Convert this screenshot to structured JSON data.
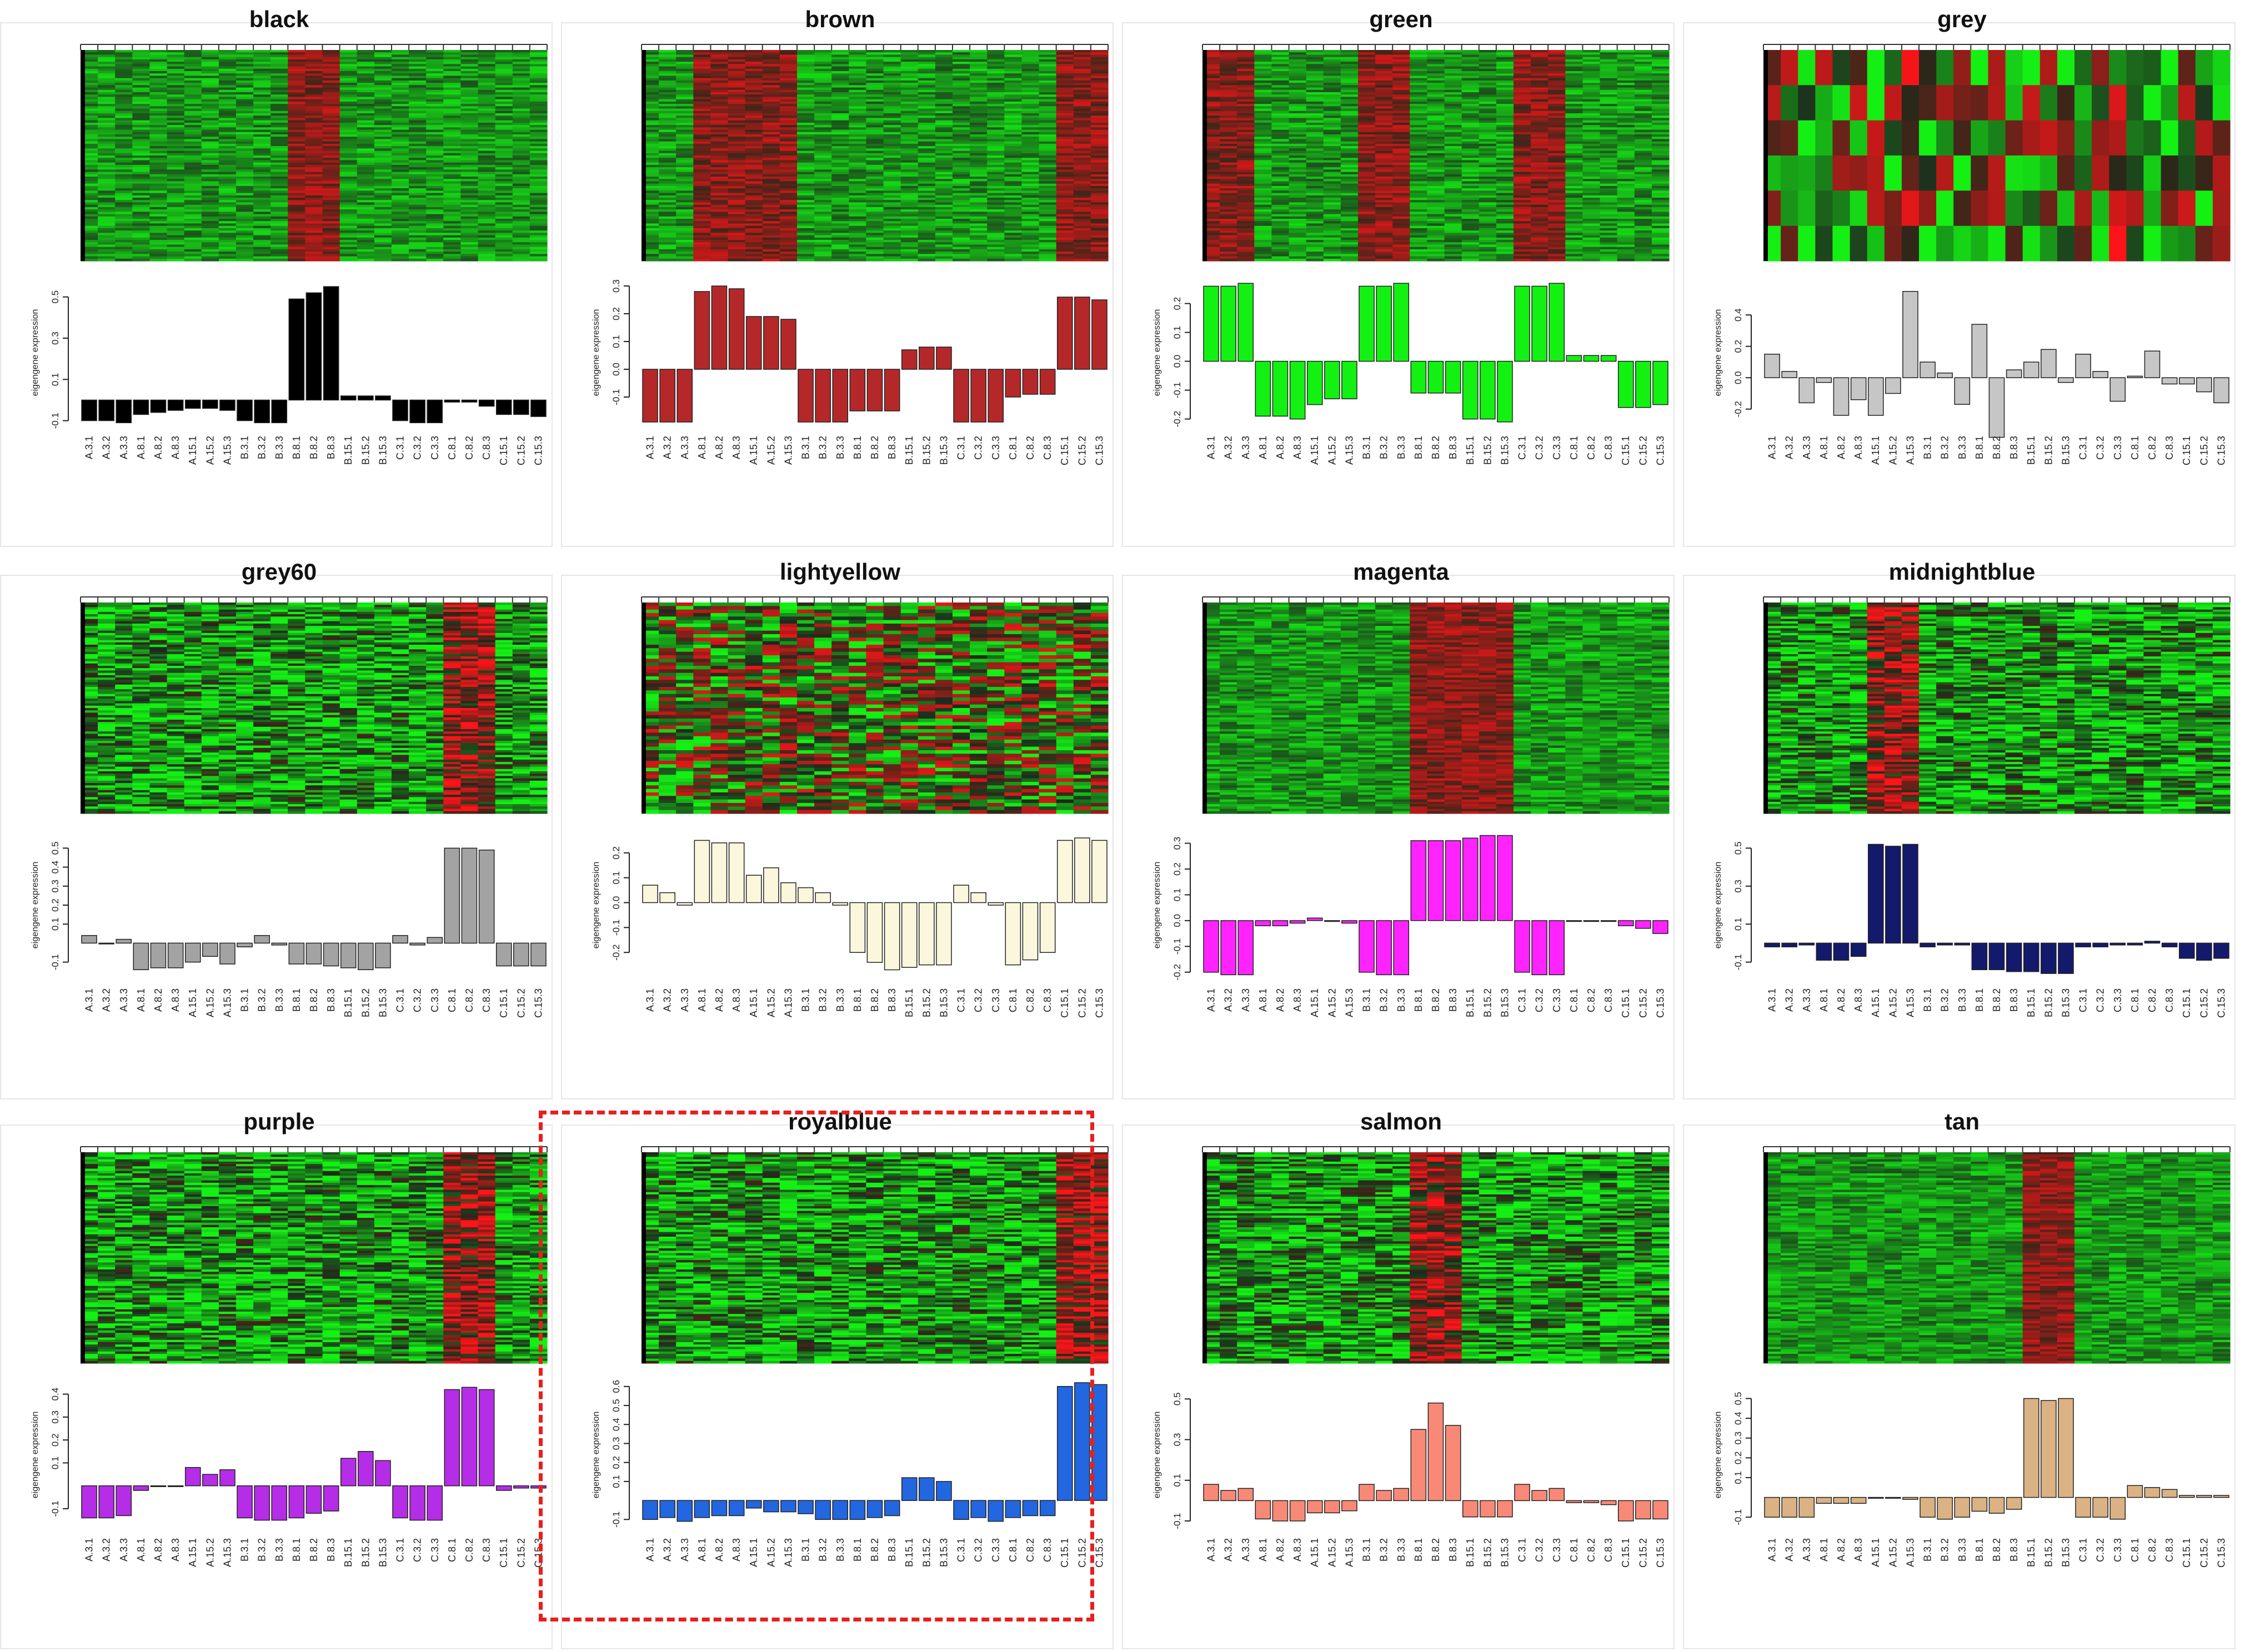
{
  "chart_data": [
    {
      "type": "bar",
      "title": "black",
      "ylabel": "eigengene expression",
      "bar_color": "#000000",
      "ylim": [
        -0.12,
        0.58
      ],
      "yticks": [
        -0.1,
        0.1,
        0.3,
        0.5
      ],
      "heatmap_style": "smooth",
      "highlight_columns": [
        12,
        13,
        14
      ],
      "heatmap_bias": 0.55,
      "categories": [
        "A.3.1",
        "A.3.2",
        "A.3.3",
        "A.8.1",
        "A.8.2",
        "A.8.3",
        "A.15.1",
        "A.15.2",
        "A.15.3",
        "B.3.1",
        "B.3.2",
        "B.3.3",
        "B.8.1",
        "B.8.2",
        "B.8.3",
        "B.15.1",
        "B.15.2",
        "B.15.3",
        "C.3.1",
        "C.3.2",
        "C.3.3",
        "C.8.1",
        "C.8.2",
        "C.8.3",
        "C.15.1",
        "C.15.2",
        "C.15.3"
      ],
      "values": [
        -0.1,
        -0.1,
        -0.11,
        -0.07,
        -0.06,
        -0.05,
        -0.04,
        -0.04,
        -0.05,
        -0.1,
        -0.11,
        -0.11,
        0.49,
        0.52,
        0.55,
        0.02,
        0.02,
        0.02,
        -0.1,
        -0.11,
        -0.11,
        -0.01,
        -0.01,
        -0.03,
        -0.07,
        -0.07,
        -0.08
      ]
    },
    {
      "type": "bar",
      "title": "brown",
      "ylabel": "eigengene expression",
      "bar_color": "#b5282a",
      "ylim": [
        -0.2,
        0.32
      ],
      "yticks": [
        -0.1,
        0.0,
        0.1,
        0.2,
        0.3
      ],
      "heatmap_style": "smooth",
      "highlight_columns": [
        3,
        4,
        5,
        6,
        7,
        8,
        24,
        25,
        26
      ],
      "heatmap_bias": 0.22,
      "categories": [
        "A.3.1",
        "A.3.2",
        "A.3.3",
        "A.8.1",
        "A.8.2",
        "A.8.3",
        "A.15.1",
        "A.15.2",
        "A.15.3",
        "B.3.1",
        "B.3.2",
        "B.3.3",
        "B.8.1",
        "B.8.2",
        "B.8.3",
        "B.15.1",
        "B.15.2",
        "B.15.3",
        "C.3.1",
        "C.3.2",
        "C.3.3",
        "C.8.1",
        "C.8.2",
        "C.8.3",
        "C.15.1",
        "C.15.2",
        "C.15.3"
      ],
      "values": [
        -0.19,
        -0.19,
        -0.19,
        0.28,
        0.3,
        0.29,
        0.19,
        0.19,
        0.18,
        -0.19,
        -0.19,
        -0.19,
        -0.15,
        -0.15,
        -0.15,
        0.07,
        0.08,
        0.08,
        -0.19,
        -0.19,
        -0.19,
        -0.1,
        -0.09,
        -0.09,
        0.26,
        0.26,
        0.25
      ]
    },
    {
      "type": "bar",
      "title": "green",
      "ylabel": "eigengene expression",
      "bar_color": "#13f113",
      "ylim": [
        -0.22,
        0.28
      ],
      "yticks": [
        -0.2,
        -0.1,
        0.0,
        0.1,
        0.2
      ],
      "heatmap_style": "smooth",
      "highlight_columns": [
        0,
        1,
        2,
        9,
        10,
        11,
        18,
        19,
        20
      ],
      "heatmap_bias": 0.35,
      "categories": [
        "A.3.1",
        "A.3.2",
        "A.3.3",
        "A.8.1",
        "A.8.2",
        "A.8.3",
        "A.15.1",
        "A.15.2",
        "A.15.3",
        "B.3.1",
        "B.3.2",
        "B.3.3",
        "B.8.1",
        "B.8.2",
        "B.8.3",
        "B.15.1",
        "B.15.2",
        "B.15.3",
        "C.3.1",
        "C.3.2",
        "C.3.3",
        "C.8.1",
        "C.8.2",
        "C.8.3",
        "C.15.1",
        "C.15.2",
        "C.15.3"
      ],
      "values": [
        0.26,
        0.26,
        0.27,
        -0.19,
        -0.19,
        -0.2,
        -0.15,
        -0.13,
        -0.13,
        0.26,
        0.26,
        0.27,
        -0.11,
        -0.11,
        -0.11,
        -0.2,
        -0.2,
        -0.21,
        0.26,
        0.26,
        0.27,
        0.02,
        0.02,
        0.02,
        -0.16,
        -0.16,
        -0.15
      ]
    },
    {
      "type": "bar",
      "title": "grey",
      "ylabel": "eigengene expression",
      "bar_color": "#c6c6c6",
      "ylim": [
        -0.3,
        0.62
      ],
      "yticks": [
        -0.2,
        0.0,
        0.2,
        0.4
      ],
      "heatmap_style": "blocky",
      "heatmap_rows": 6,
      "highlight_columns": [
        8,
        13,
        20
      ],
      "heatmap_bias": 0.1,
      "categories": [
        "A.3.1",
        "A.3.2",
        "A.3.3",
        "A.8.1",
        "A.8.2",
        "A.8.3",
        "A.15.1",
        "A.15.2",
        "A.15.3",
        "B.3.1",
        "B.3.2",
        "B.3.3",
        "B.8.1",
        "B.8.2",
        "B.8.3",
        "B.15.1",
        "B.15.2",
        "B.15.3",
        "C.3.1",
        "C.3.2",
        "C.3.3",
        "C.8.1",
        "C.8.2",
        "C.8.3",
        "C.15.1",
        "C.15.2",
        "C.15.3"
      ],
      "values": [
        0.15,
        0.04,
        -0.16,
        -0.03,
        -0.24,
        -0.14,
        -0.24,
        -0.1,
        0.55,
        0.1,
        0.03,
        -0.17,
        0.34,
        -0.38,
        0.05,
        0.1,
        0.18,
        -0.03,
        0.15,
        0.04,
        -0.15,
        0.01,
        0.17,
        -0.04,
        -0.04,
        -0.09,
        -0.16
      ]
    },
    {
      "type": "bar",
      "title": "grey60",
      "ylabel": "eigengene expression",
      "bar_color": "#a3a3a3",
      "ylim": [
        -0.18,
        0.58
      ],
      "yticks": [
        -0.1,
        0.1,
        0.2,
        0.3,
        0.4,
        0.5
      ],
      "heatmap_style": "fine",
      "highlight_columns": [
        21,
        22,
        23
      ],
      "heatmap_bias": 0.15,
      "categories": [
        "A.3.1",
        "A.3.2",
        "A.3.3",
        "A.8.1",
        "A.8.2",
        "A.8.3",
        "A.15.1",
        "A.15.2",
        "A.15.3",
        "B.3.1",
        "B.3.2",
        "B.3.3",
        "B.8.1",
        "B.8.2",
        "B.8.3",
        "B.15.1",
        "B.15.2",
        "B.15.3",
        "C.3.1",
        "C.3.2",
        "C.3.3",
        "C.8.1",
        "C.8.2",
        "C.8.3",
        "C.15.1",
        "C.15.2",
        "C.15.3"
      ],
      "values": [
        0.04,
        0.0,
        0.02,
        -0.14,
        -0.13,
        -0.13,
        -0.1,
        -0.07,
        -0.11,
        -0.02,
        0.04,
        -0.01,
        -0.11,
        -0.11,
        -0.12,
        -0.13,
        -0.14,
        -0.13,
        0.04,
        -0.01,
        0.03,
        0.5,
        0.5,
        0.49,
        -0.12,
        -0.12,
        -0.12
      ]
    },
    {
      "type": "bar",
      "title": "lightyellow",
      "ylabel": "eigengene expression",
      "bar_color": "#fbf7dc",
      "ylim": [
        -0.3,
        0.28
      ],
      "yticks": [
        -0.2,
        -0.1,
        0.0,
        0.1,
        0.2
      ],
      "heatmap_style": "noisy",
      "highlight_columns": [],
      "heatmap_bias": 0.05,
      "categories": [
        "A.3.1",
        "A.3.2",
        "A.3.3",
        "A.8.1",
        "A.8.2",
        "A.8.3",
        "A.15.1",
        "A.15.2",
        "A.15.3",
        "B.3.1",
        "B.3.2",
        "B.3.3",
        "B.8.1",
        "B.8.2",
        "B.8.3",
        "B.15.1",
        "B.15.2",
        "B.15.3",
        "C.3.1",
        "C.3.2",
        "C.3.3",
        "C.8.1",
        "C.8.2",
        "C.8.3",
        "C.15.1",
        "C.15.2",
        "C.15.3"
      ],
      "values": [
        0.07,
        0.04,
        -0.01,
        0.25,
        0.24,
        0.24,
        0.11,
        0.14,
        0.08,
        0.06,
        0.04,
        -0.01,
        -0.2,
        -0.24,
        -0.27,
        -0.26,
        -0.25,
        -0.25,
        0.07,
        0.04,
        -0.01,
        -0.25,
        -0.23,
        -0.2,
        0.25,
        0.26,
        0.25
      ]
    },
    {
      "type": "bar",
      "title": "magenta",
      "ylabel": "eigengene expression",
      "bar_color": "#ff24ff",
      "ylim": [
        -0.22,
        0.34
      ],
      "yticks": [
        -0.2,
        -0.1,
        0.0,
        0.1,
        0.2,
        0.3
      ],
      "heatmap_style": "smooth",
      "highlight_columns": [
        12,
        13,
        14,
        15,
        16,
        17
      ],
      "heatmap_bias": 0.3,
      "categories": [
        "A.3.1",
        "A.3.2",
        "A.3.3",
        "A.8.1",
        "A.8.2",
        "A.8.3",
        "A.15.1",
        "A.15.2",
        "A.15.3",
        "B.3.1",
        "B.3.2",
        "B.3.3",
        "B.8.1",
        "B.8.2",
        "B.8.3",
        "B.15.1",
        "B.15.2",
        "B.15.3",
        "C.3.1",
        "C.3.2",
        "C.3.3",
        "C.8.1",
        "C.8.2",
        "C.8.3",
        "C.15.1",
        "C.15.2",
        "C.15.3"
      ],
      "values": [
        -0.2,
        -0.21,
        -0.21,
        -0.02,
        -0.02,
        -0.01,
        0.01,
        0.0,
        -0.01,
        -0.2,
        -0.21,
        -0.21,
        0.31,
        0.31,
        0.31,
        0.32,
        0.33,
        0.33,
        -0.2,
        -0.21,
        -0.21,
        0.0,
        0.0,
        0.0,
        -0.02,
        -0.03,
        -0.05
      ]
    },
    {
      "type": "bar",
      "title": "midnightblue",
      "ylabel": "eigengene expression",
      "bar_color": "#13196b",
      "ylim": [
        -0.18,
        0.58
      ],
      "yticks": [
        -0.1,
        0.1,
        0.3,
        0.5
      ],
      "heatmap_style": "fine",
      "highlight_columns": [
        6,
        7,
        8
      ],
      "heatmap_bias": 0.15,
      "categories": [
        "A.3.1",
        "A.3.2",
        "A.3.3",
        "A.8.1",
        "A.8.2",
        "A.8.3",
        "A.15.1",
        "A.15.2",
        "A.15.3",
        "B.3.1",
        "B.3.2",
        "B.3.3",
        "B.8.1",
        "B.8.2",
        "B.8.3",
        "B.15.1",
        "B.15.2",
        "B.15.3",
        "C.3.1",
        "C.3.2",
        "C.3.3",
        "C.8.1",
        "C.8.2",
        "C.8.3",
        "C.15.1",
        "C.15.2",
        "C.15.3"
      ],
      "values": [
        -0.02,
        -0.02,
        -0.01,
        -0.09,
        -0.09,
        -0.07,
        0.52,
        0.51,
        0.52,
        -0.02,
        -0.01,
        -0.01,
        -0.14,
        -0.14,
        -0.15,
        -0.15,
        -0.16,
        -0.16,
        -0.02,
        -0.02,
        -0.01,
        -0.01,
        0.01,
        -0.02,
        -0.08,
        -0.09,
        -0.08
      ]
    },
    {
      "type": "bar",
      "title": "purple",
      "ylabel": "eigengene expression",
      "bar_color": "#b52de6",
      "ylim": [
        -0.18,
        0.45
      ],
      "yticks": [
        -0.1,
        0.1,
        0.2,
        0.3,
        0.4
      ],
      "heatmap_style": "fine",
      "highlight_columns": [
        21,
        22,
        23
      ],
      "heatmap_bias": 0.2,
      "categories": [
        "A.3.1",
        "A.3.2",
        "A.3.3",
        "A.8.1",
        "A.8.2",
        "A.8.3",
        "A.15.1",
        "A.15.2",
        "A.15.3",
        "B.3.1",
        "B.3.2",
        "B.3.3",
        "B.8.1",
        "B.8.2",
        "B.8.3",
        "B.15.1",
        "B.15.2",
        "B.15.3",
        "C.3.1",
        "C.3.2",
        "C.3.3",
        "C.8.1",
        "C.8.2",
        "C.8.3",
        "C.15.1",
        "C.15.2",
        "C.15.3"
      ],
      "values": [
        -0.14,
        -0.14,
        -0.13,
        -0.02,
        0.0,
        0.0,
        0.08,
        0.05,
        0.07,
        -0.14,
        -0.15,
        -0.15,
        -0.14,
        -0.12,
        -0.11,
        0.12,
        0.15,
        0.11,
        -0.14,
        -0.15,
        -0.15,
        0.42,
        0.43,
        0.42,
        -0.02,
        -0.01,
        -0.01
      ]
    },
    {
      "type": "bar",
      "title": "royalblue",
      "ylabel": "eigengene expression",
      "bar_color": "#2266e0",
      "ylim": [
        -0.14,
        0.62
      ],
      "yticks": [
        -0.1,
        0.1,
        0.2,
        0.3,
        0.4,
        0.5,
        0.6
      ],
      "heatmap_style": "fine",
      "highlight_columns": [
        24,
        25,
        26
      ],
      "heatmap_bias": 0.1,
      "categories": [
        "A.3.1",
        "A.3.2",
        "A.3.3",
        "A.8.1",
        "A.8.2",
        "A.8.3",
        "A.15.1",
        "A.15.2",
        "A.15.3",
        "B.3.1",
        "B.3.2",
        "B.3.3",
        "B.8.1",
        "B.8.2",
        "B.8.3",
        "B.15.1",
        "B.15.2",
        "B.15.3",
        "C.3.1",
        "C.3.2",
        "C.3.3",
        "C.8.1",
        "C.8.2",
        "C.8.3",
        "C.15.1",
        "C.15.2",
        "C.15.3"
      ],
      "values": [
        -0.1,
        -0.09,
        -0.11,
        -0.09,
        -0.08,
        -0.08,
        -0.04,
        -0.06,
        -0.06,
        -0.07,
        -0.1,
        -0.1,
        -0.1,
        -0.09,
        -0.08,
        0.12,
        0.12,
        0.1,
        -0.1,
        -0.09,
        -0.11,
        -0.09,
        -0.08,
        -0.08,
        0.6,
        0.62,
        0.61
      ]
    },
    {
      "type": "bar",
      "title": "salmon",
      "ylabel": "eigengene expression",
      "bar_color": "#f98977",
      "ylim": [
        -0.13,
        0.58
      ],
      "yticks": [
        -0.1,
        0.1,
        0.3,
        0.5
      ],
      "heatmap_style": "fine",
      "highlight_columns": [
        12,
        13,
        14
      ],
      "heatmap_bias": 0.15,
      "categories": [
        "A.3.1",
        "A.3.2",
        "A.3.3",
        "A.8.1",
        "A.8.2",
        "A.8.3",
        "A.15.1",
        "A.15.2",
        "A.15.3",
        "B.3.1",
        "B.3.2",
        "B.3.3",
        "B.8.1",
        "B.8.2",
        "B.8.3",
        "B.15.1",
        "B.15.2",
        "B.15.3",
        "C.3.1",
        "C.3.2",
        "C.3.3",
        "C.8.1",
        "C.8.2",
        "C.8.3",
        "C.15.1",
        "C.15.2",
        "C.15.3"
      ],
      "values": [
        0.08,
        0.05,
        0.06,
        -0.09,
        -0.1,
        -0.1,
        -0.06,
        -0.06,
        -0.05,
        0.08,
        0.05,
        0.06,
        0.35,
        0.48,
        0.37,
        -0.08,
        -0.08,
        -0.08,
        0.08,
        0.05,
        0.06,
        -0.01,
        -0.01,
        -0.02,
        -0.1,
        -0.09,
        -0.09
      ]
    },
    {
      "type": "bar",
      "title": "tan",
      "ylabel": "eigengene expression",
      "bar_color": "#dbb283",
      "ylim": [
        -0.15,
        0.58
      ],
      "yticks": [
        -0.1,
        0.1,
        0.2,
        0.3,
        0.4,
        0.5
      ],
      "heatmap_style": "smooth",
      "highlight_columns": [
        15,
        16,
        17
      ],
      "heatmap_bias": 0.4,
      "categories": [
        "A.3.1",
        "A.3.2",
        "A.3.3",
        "A.8.1",
        "A.8.2",
        "A.8.3",
        "A.15.1",
        "A.15.2",
        "A.15.3",
        "B.3.1",
        "B.3.2",
        "B.3.3",
        "B.8.1",
        "B.8.2",
        "B.8.3",
        "B.15.1",
        "B.15.2",
        "B.15.3",
        "C.3.1",
        "C.3.2",
        "C.3.3",
        "C.8.1",
        "C.8.2",
        "C.8.3",
        "C.15.1",
        "C.15.2",
        "C.15.3"
      ],
      "values": [
        -0.1,
        -0.1,
        -0.1,
        -0.03,
        -0.03,
        -0.03,
        0.0,
        0.0,
        -0.01,
        -0.1,
        -0.11,
        -0.1,
        -0.07,
        -0.08,
        -0.06,
        0.5,
        0.49,
        0.5,
        -0.1,
        -0.1,
        -0.11,
        0.06,
        0.05,
        0.04,
        0.01,
        0.01,
        0.01
      ]
    }
  ]
}
